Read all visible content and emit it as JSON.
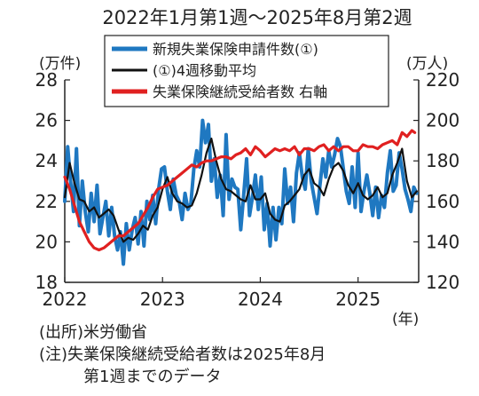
{
  "chart_data": {
    "type": "line",
    "title": "2022年1月第1週～2025年8月第2週",
    "left_unit": "(万件)",
    "right_unit": "(万人)",
    "x_unit": "(年)",
    "x_ticks": [
      "2022",
      "2023",
      "2024",
      "2025"
    ],
    "y_left": {
      "range": [
        18,
        28
      ],
      "ticks": [
        "18",
        "20",
        "22",
        "24",
        "26",
        "28"
      ]
    },
    "y_right": {
      "range": [
        120,
        220
      ],
      "ticks": [
        "120",
        "140",
        "160",
        "180",
        "200",
        "220"
      ]
    },
    "grid": false,
    "legend_position": "top",
    "x_range": [
      2022.0,
      2025.62
    ],
    "series": [
      {
        "name": "新規失業保険申請件数(①)",
        "axis": "left",
        "color": "#1f78c1",
        "x": [
          2022.0,
          2022.03,
          2022.06,
          2022.09,
          2022.12,
          2022.15,
          2022.18,
          2022.21,
          2022.24,
          2022.27,
          2022.3,
          2022.33,
          2022.36,
          2022.39,
          2022.42,
          2022.45,
          2022.48,
          2022.51,
          2022.54,
          2022.57,
          2022.6,
          2022.63,
          2022.66,
          2022.69,
          2022.72,
          2022.75,
          2022.78,
          2022.81,
          2022.84,
          2022.87,
          2022.9,
          2022.93,
          2022.96,
          2022.99,
          2023.02,
          2023.05,
          2023.08,
          2023.11,
          2023.14,
          2023.17,
          2023.2,
          2023.23,
          2023.26,
          2023.29,
          2023.32,
          2023.35,
          2023.38,
          2023.41,
          2023.44,
          2023.47,
          2023.5,
          2023.53,
          2023.56,
          2023.59,
          2023.62,
          2023.65,
          2023.68,
          2023.71,
          2023.74,
          2023.77,
          2023.8,
          2023.83,
          2023.86,
          2023.89,
          2023.92,
          2023.95,
          2023.98,
          2024.01,
          2024.04,
          2024.07,
          2024.1,
          2024.13,
          2024.16,
          2024.19,
          2024.22,
          2024.25,
          2024.28,
          2024.31,
          2024.34,
          2024.37,
          2024.4,
          2024.43,
          2024.46,
          2024.49,
          2024.52,
          2024.55,
          2024.58,
          2024.61,
          2024.64,
          2024.67,
          2024.7,
          2024.73,
          2024.76,
          2024.79,
          2024.82,
          2024.85,
          2024.88,
          2024.91,
          2024.94,
          2024.97,
          2025.0,
          2025.03,
          2025.06,
          2025.09,
          2025.12,
          2025.15,
          2025.18,
          2025.21,
          2025.24,
          2025.27,
          2025.3,
          2025.33,
          2025.36,
          2025.39,
          2025.42,
          2025.45,
          2025.48,
          2025.51,
          2025.54,
          2025.57,
          2025.6
        ],
        "values": [
          22.0,
          24.7,
          23.0,
          21.5,
          24.6,
          20.8,
          23.0,
          21.5,
          20.5,
          22.4,
          21.0,
          22.8,
          20.4,
          21.2,
          22.0,
          20.3,
          21.7,
          20.3,
          19.6,
          20.5,
          18.9,
          20.9,
          19.6,
          20.6,
          21.2,
          19.9,
          21.5,
          19.8,
          22.0,
          21.1,
          22.3,
          20.9,
          22.6,
          23.6,
          23.7,
          22.5,
          21.6,
          23.1,
          22.3,
          22.0,
          21.1,
          22.4,
          21.6,
          21.9,
          23.6,
          24.5,
          23.7,
          26.0,
          24.9,
          25.8,
          23.0,
          24.1,
          22.2,
          23.3,
          21.3,
          25.3,
          22.1,
          23.1,
          22.7,
          22.6,
          20.6,
          22.3,
          24.1,
          21.3,
          22.2,
          23.3,
          21.6,
          23.2,
          20.6,
          21.9,
          19.8,
          21.7,
          20.1,
          21.7,
          20.9,
          23.6,
          21.9,
          22.7,
          21.0,
          23.4,
          24.4,
          23.2,
          22.6,
          24.6,
          23.0,
          22.2,
          21.4,
          22.8,
          24.1,
          23.2,
          24.5,
          23.7,
          24.3,
          25.1,
          24.7,
          23.6,
          22.5,
          21.9,
          23.7,
          21.7,
          24.4,
          21.5,
          22.5,
          23.3,
          22.4,
          21.3,
          22.7,
          21.2,
          22.3,
          21.7,
          23.4,
          24.5,
          22.5,
          22.8,
          24.4,
          23.6,
          22.6,
          22.1,
          21.5,
          22.7,
          22.4
        ]
      },
      {
        "name": "(①)4週移動平均",
        "axis": "left",
        "color": "#111111",
        "x": [
          2022.0,
          2022.05,
          2022.1,
          2022.15,
          2022.2,
          2022.25,
          2022.3,
          2022.35,
          2022.4,
          2022.45,
          2022.5,
          2022.55,
          2022.6,
          2022.65,
          2022.7,
          2022.75,
          2022.8,
          2022.85,
          2022.9,
          2022.95,
          2023.0,
          2023.05,
          2023.1,
          2023.15,
          2023.2,
          2023.25,
          2023.3,
          2023.35,
          2023.4,
          2023.45,
          2023.5,
          2023.55,
          2023.6,
          2023.65,
          2023.7,
          2023.75,
          2023.8,
          2023.85,
          2023.9,
          2023.95,
          2024.0,
          2024.05,
          2024.1,
          2024.15,
          2024.2,
          2024.25,
          2024.3,
          2024.35,
          2024.4,
          2024.45,
          2024.5,
          2024.55,
          2024.6,
          2024.65,
          2024.7,
          2024.75,
          2024.8,
          2024.85,
          2024.9,
          2024.95,
          2025.0,
          2025.05,
          2025.1,
          2025.15,
          2025.2,
          2025.25,
          2025.3,
          2025.35,
          2025.4,
          2025.45,
          2025.5,
          2025.55,
          2025.6
        ],
        "values": [
          22.2,
          23.9,
          22.9,
          22.1,
          22.0,
          21.5,
          21.7,
          21.2,
          21.4,
          21.6,
          21.3,
          20.6,
          20.0,
          20.2,
          20.1,
          20.4,
          20.8,
          20.6,
          21.3,
          21.7,
          22.6,
          23.2,
          22.4,
          22.0,
          21.9,
          21.7,
          21.8,
          22.4,
          23.3,
          24.4,
          25.1,
          24.0,
          23.1,
          22.6,
          22.5,
          22.3,
          22.1,
          22.0,
          22.8,
          22.1,
          22.1,
          22.4,
          21.4,
          21.1,
          21.0,
          21.8,
          22.0,
          22.3,
          22.6,
          23.3,
          23.6,
          22.9,
          22.7,
          22.3,
          23.1,
          23.7,
          23.9,
          23.5,
          22.8,
          22.4,
          22.9,
          22.3,
          22.1,
          22.3,
          22.7,
          22.2,
          22.4,
          23.3,
          23.9,
          24.6,
          23.0,
          22.2,
          22.5
        ]
      },
      {
        "name": "失業保険継続受給者数 右軸",
        "axis": "right",
        "color": "#e02020",
        "x": [
          2022.0,
          2022.05,
          2022.1,
          2022.15,
          2022.2,
          2022.25,
          2022.3,
          2022.35,
          2022.4,
          2022.45,
          2022.5,
          2022.55,
          2022.6,
          2022.65,
          2022.7,
          2022.75,
          2022.8,
          2022.85,
          2022.9,
          2022.95,
          2023.0,
          2023.05,
          2023.1,
          2023.15,
          2023.2,
          2023.25,
          2023.3,
          2023.35,
          2023.4,
          2023.45,
          2023.5,
          2023.55,
          2023.6,
          2023.65,
          2023.7,
          2023.75,
          2023.8,
          2023.85,
          2023.9,
          2023.95,
          2024.0,
          2024.05,
          2024.1,
          2024.15,
          2024.2,
          2024.25,
          2024.3,
          2024.35,
          2024.4,
          2024.45,
          2024.5,
          2024.55,
          2024.6,
          2024.65,
          2024.7,
          2024.75,
          2024.8,
          2024.85,
          2024.9,
          2024.95,
          2025.0,
          2025.05,
          2025.1,
          2025.15,
          2025.2,
          2025.25,
          2025.3,
          2025.35,
          2025.4,
          2025.45,
          2025.5,
          2025.55,
          2025.58
        ],
        "values": [
          172,
          166,
          158,
          150,
          145,
          140,
          137,
          136,
          137,
          139,
          141,
          143,
          143,
          145,
          147,
          149,
          153,
          157,
          162,
          166,
          167,
          168,
          170,
          172,
          174,
          176,
          178,
          177,
          179,
          180,
          180,
          181,
          182,
          182,
          181,
          183,
          184,
          186,
          183,
          187,
          185,
          182,
          184,
          186,
          185,
          186,
          185,
          187,
          183,
          186,
          186,
          185,
          187,
          188,
          185,
          187,
          185,
          187,
          187,
          185,
          185,
          188,
          187,
          187,
          186,
          188,
          189,
          190,
          188,
          194,
          192,
          195,
          194
        ]
      }
    ]
  },
  "notes": [
    "(出所)米労働省",
    "(注)失業保険継続受給者数は2025年8月",
    "第1週までのデータ"
  ]
}
